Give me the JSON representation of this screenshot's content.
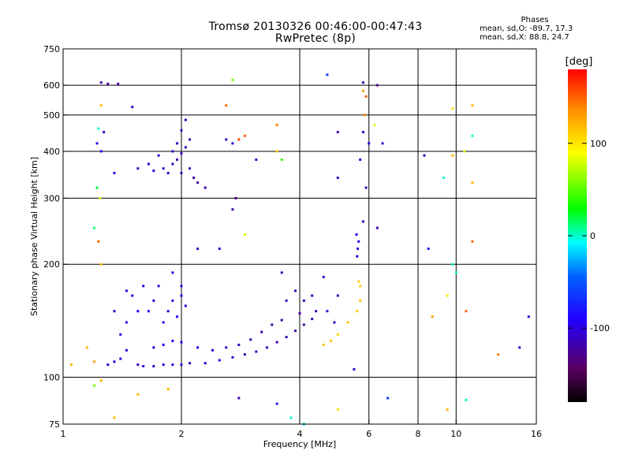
{
  "chart_data": {
    "type": "scatter",
    "title": "Tromsø 20130326 00:46:00-00:47:43",
    "subtitle": "RwPretec (8p)",
    "stats": {
      "heading": "Phases",
      "line1": "mean, sd,O: -89.7, 17.3",
      "line2": "mean, sd,X: 88.8, 24.7"
    },
    "xlabel": "Frequency [MHz]",
    "ylabel": "Stationary phase Virtual Height [km]",
    "x_scale": "log",
    "y_scale": "log",
    "xlim": [
      1,
      16
    ],
    "ylim": [
      75,
      750
    ],
    "x_ticks": [
      1,
      2,
      4,
      6,
      8,
      10,
      16
    ],
    "x_tick_labels": [
      "1",
      "2",
      "4",
      "6",
      "8",
      "10",
      "16"
    ],
    "y_ticks": [
      75,
      100,
      200,
      300,
      400,
      500,
      600,
      750
    ],
    "y_tick_labels": [
      "75",
      "100",
      "200",
      "300",
      "400",
      "500",
      "600",
      "750"
    ],
    "x_gridlines": [
      2,
      4,
      6,
      8,
      10
    ],
    "y_gridlines": [
      100,
      200,
      300,
      400,
      500,
      600
    ],
    "grid": true,
    "colorbar": {
      "label": "[deg]",
      "range": [
        -180,
        180
      ],
      "tick_values": [
        100,
        0,
        -100
      ],
      "tick_labels": [
        "100",
        "0",
        "-100"
      ],
      "colors": [
        "#000000",
        "#5a0060",
        "#2200ff",
        "#0064ff",
        "#00ffff",
        "#00ff00",
        "#ffff00",
        "#ff8c00",
        "#ff0000"
      ]
    },
    "series": [
      {
        "points": [
          [
            1.55,
            108,
            -110
          ],
          [
            1.6,
            107,
            -110
          ],
          [
            1.7,
            107,
            -105
          ],
          [
            1.8,
            108,
            -100
          ],
          [
            1.9,
            108,
            -100
          ],
          [
            2.0,
            108,
            -105
          ],
          [
            2.1,
            109,
            -105
          ],
          [
            2.3,
            109,
            -100
          ],
          [
            2.5,
            111,
            -100
          ],
          [
            2.7,
            113,
            -105
          ],
          [
            2.9,
            115,
            -110
          ],
          [
            3.1,
            117,
            -110
          ],
          [
            3.3,
            120,
            -115
          ],
          [
            3.5,
            124,
            -115
          ],
          [
            3.7,
            128,
            -115
          ],
          [
            3.9,
            133,
            -120
          ],
          [
            4.1,
            138,
            -125
          ],
          [
            4.3,
            143,
            -120
          ],
          [
            1.3,
            108,
            -100
          ],
          [
            1.35,
            110,
            -100
          ],
          [
            1.4,
            112,
            -95
          ],
          [
            1.45,
            118,
            -95
          ],
          [
            1.7,
            120,
            -95
          ],
          [
            1.8,
            122,
            -90
          ],
          [
            1.9,
            125,
            -95
          ],
          [
            2.0,
            124,
            -95
          ],
          [
            2.2,
            120,
            -100
          ],
          [
            2.4,
            118,
            -100
          ],
          [
            2.6,
            120,
            -105
          ],
          [
            2.8,
            122,
            -110
          ],
          [
            3.0,
            126,
            -115
          ],
          [
            3.2,
            132,
            -115
          ],
          [
            3.4,
            138,
            -120
          ],
          [
            3.6,
            142,
            -120
          ],
          [
            4.0,
            148,
            -120
          ],
          [
            4.4,
            150,
            -115
          ],
          [
            1.8,
            140,
            -95
          ],
          [
            1.85,
            150,
            -100
          ],
          [
            1.9,
            160,
            -100
          ],
          [
            1.95,
            145,
            -95
          ],
          [
            2.0,
            165,
            -100
          ],
          [
            2.05,
            155,
            -95
          ],
          [
            1.75,
            175,
            -100
          ],
          [
            1.7,
            160,
            -95
          ],
          [
            1.65,
            150,
            -90
          ],
          [
            1.6,
            175,
            -95
          ],
          [
            1.5,
            165,
            -100
          ],
          [
            1.55,
            150,
            -90
          ],
          [
            1.9,
            190,
            -100
          ],
          [
            2.0,
            175,
            -100
          ],
          [
            1.4,
            130,
            -95
          ],
          [
            1.45,
            140,
            -100
          ],
          [
            1.35,
            150,
            -105
          ],
          [
            1.45,
            170,
            -105
          ],
          [
            3.7,
            160,
            -110
          ],
          [
            3.9,
            170,
            -115
          ],
          [
            4.1,
            160,
            -115
          ],
          [
            4.3,
            165,
            -110
          ],
          [
            3.6,
            190,
            -115
          ],
          [
            4.7,
            150,
            -110
          ],
          [
            4.9,
            140,
            -110
          ],
          [
            4.6,
            185,
            -110
          ],
          [
            5.0,
            165,
            -110
          ],
          [
            4.6,
            122,
            115
          ],
          [
            4.8,
            125,
            115
          ],
          [
            5.0,
            130,
            110
          ],
          [
            5.3,
            140,
            115
          ],
          [
            5.6,
            150,
            110
          ],
          [
            5.7,
            160,
            115
          ],
          [
            5.65,
            180,
            110
          ],
          [
            5.7,
            175,
            110
          ],
          [
            5.6,
            210,
            -105
          ],
          [
            5.62,
            220,
            -100
          ],
          [
            5.65,
            230,
            -95
          ],
          [
            5.58,
            240,
            -100
          ],
          [
            1.55,
            360,
            -110
          ],
          [
            1.65,
            370,
            -105
          ],
          [
            1.8,
            360,
            -110
          ],
          [
            1.9,
            370,
            -110
          ],
          [
            1.95,
            380,
            -115
          ],
          [
            2.0,
            395,
            -115
          ],
          [
            2.05,
            410,
            -115
          ],
          [
            2.1,
            430,
            -115
          ],
          [
            1.85,
            350,
            -110
          ],
          [
            1.75,
            390,
            -105
          ],
          [
            1.95,
            420,
            -110
          ],
          [
            2.0,
            455,
            -110
          ],
          [
            2.05,
            485,
            -110
          ],
          [
            2.1,
            360,
            -115
          ],
          [
            1.7,
            355,
            -105
          ],
          [
            2.15,
            340,
            -115
          ],
          [
            2.2,
            330,
            -120
          ],
          [
            2.3,
            320,
            -120
          ],
          [
            2.0,
            350,
            -115
          ],
          [
            1.9,
            400,
            -110
          ],
          [
            2.6,
            430,
            -110
          ],
          [
            2.7,
            420,
            -105
          ],
          [
            2.9,
            440,
            150
          ],
          [
            2.8,
            430,
            160
          ],
          [
            3.1,
            380,
            -110
          ],
          [
            3.5,
            470,
            140
          ],
          [
            3.5,
            400,
            115
          ],
          [
            3.6,
            380,
            40
          ],
          [
            2.7,
            280,
            -120
          ],
          [
            2.75,
            300,
            -130
          ],
          [
            2.9,
            240,
            80
          ],
          [
            2.5,
            220,
            -110
          ],
          [
            2.2,
            220,
            -115
          ],
          [
            5.0,
            340,
            -110
          ],
          [
            5.0,
            450,
            -120
          ],
          [
            1.25,
            610,
            -120
          ],
          [
            1.3,
            605,
            -130
          ],
          [
            1.25,
            530,
            120
          ],
          [
            1.23,
            460,
            0
          ],
          [
            1.27,
            450,
            -110
          ],
          [
            1.25,
            400,
            -90
          ],
          [
            1.22,
            420,
            -100
          ],
          [
            1.22,
            320,
            20
          ],
          [
            1.24,
            300,
            80
          ],
          [
            1.2,
            250,
            10
          ],
          [
            1.23,
            230,
            150
          ],
          [
            1.25,
            200,
            120
          ],
          [
            1.38,
            605,
            -120
          ],
          [
            1.5,
            525,
            -110
          ],
          [
            1.35,
            350,
            -95
          ],
          [
            2.6,
            530,
            150
          ],
          [
            2.7,
            620,
            60
          ],
          [
            4.7,
            640,
            -60
          ],
          [
            5.8,
            610,
            -110
          ],
          [
            5.8,
            580,
            130
          ],
          [
            5.9,
            560,
            150
          ],
          [
            6.3,
            600,
            -130
          ],
          [
            5.85,
            500,
            140
          ],
          [
            5.8,
            450,
            -110
          ],
          [
            6.0,
            420,
            -100
          ],
          [
            5.7,
            380,
            -105
          ],
          [
            5.9,
            320,
            -110
          ],
          [
            5.8,
            260,
            -105
          ],
          [
            6.3,
            250,
            -115
          ],
          [
            6.2,
            470,
            80
          ],
          [
            6.5,
            420,
            -110
          ],
          [
            8.3,
            390,
            -110
          ],
          [
            9.3,
            340,
            0
          ],
          [
            9.8,
            390,
            120
          ],
          [
            10.5,
            400,
            80
          ],
          [
            11.0,
            440,
            0
          ],
          [
            11.0,
            330,
            120
          ],
          [
            9.8,
            520,
            100
          ],
          [
            11.0,
            530,
            120
          ],
          [
            8.5,
            220,
            -80
          ],
          [
            11.0,
            230,
            150
          ],
          [
            9.8,
            200,
            0
          ],
          [
            10.0,
            190,
            0
          ],
          [
            9.5,
            165,
            100
          ],
          [
            8.7,
            145,
            130
          ],
          [
            10.6,
            150,
            150
          ],
          [
            12.8,
            115,
            140
          ],
          [
            14.5,
            120,
            -110
          ],
          [
            15.3,
            145,
            -110
          ],
          [
            1.05,
            108,
            120
          ],
          [
            1.2,
            95,
            60
          ],
          [
            1.35,
            78,
            120
          ],
          [
            1.55,
            90,
            120
          ],
          [
            1.85,
            93,
            120
          ],
          [
            2.8,
            88,
            -115
          ],
          [
            3.5,
            85,
            -80
          ],
          [
            3.8,
            78,
            0
          ],
          [
            4.1,
            75,
            -20
          ],
          [
            5.0,
            82,
            100
          ],
          [
            5.5,
            105,
            -110
          ],
          [
            6.7,
            88,
            -60
          ],
          [
            9.5,
            82,
            120
          ],
          [
            10.6,
            87,
            0
          ],
          [
            1.15,
            120,
            120
          ],
          [
            1.2,
            110,
            130
          ],
          [
            1.25,
            98,
            120
          ]
        ]
      }
    ]
  }
}
